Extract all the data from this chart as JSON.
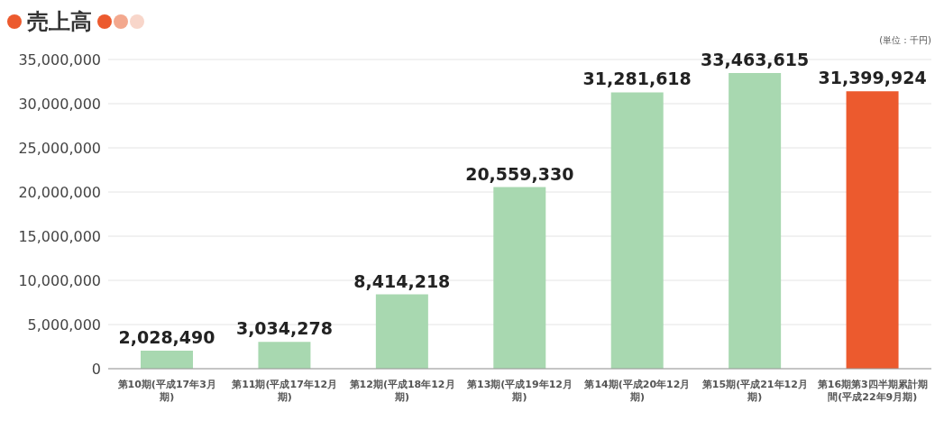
{
  "chart_data": {
    "type": "bar",
    "title": "売上高",
    "annotations": [
      "(単位：千円)"
    ],
    "categories": [
      "第10期(平成17年3月期)",
      "第11期(平成17年12月期)",
      "第12期(平成18年12月期)",
      "第13期(平成19年12月期)",
      "第14期(平成20年12月期)",
      "第15期(平成21年12月期)",
      "第16期第3四半期累計期間(平成22年9月期)"
    ],
    "values": [
      2028490,
      3034278,
      8414218,
      20559330,
      31281618,
      33463615,
      31399924
    ],
    "value_labels": [
      "2,028,490",
      "3,034,278",
      "8,414,218",
      "20,559,330",
      "31,281,618",
      "33,463,615",
      "31,399,924"
    ],
    "colors": [
      "#a8d8b0",
      "#a8d8b0",
      "#a8d8b0",
      "#a8d8b0",
      "#a8d8b0",
      "#a8d8b0",
      "#ec5a2e"
    ],
    "ylim": [
      0,
      35000000
    ],
    "yticks": [
      {
        "value": 0,
        "label": "0"
      },
      {
        "value": 5000000,
        "label": "5,000,000"
      },
      {
        "value": 10000000,
        "label": "10,000,000"
      },
      {
        "value": 15000000,
        "label": "15,000,000"
      },
      {
        "value": 20000000,
        "label": "20,000,000"
      },
      {
        "value": 25000000,
        "label": "25,000,000"
      },
      {
        "value": 30000000,
        "label": "30,000,000"
      },
      {
        "value": 35000000,
        "label": "35,000,000"
      }
    ],
    "grid": "y"
  }
}
